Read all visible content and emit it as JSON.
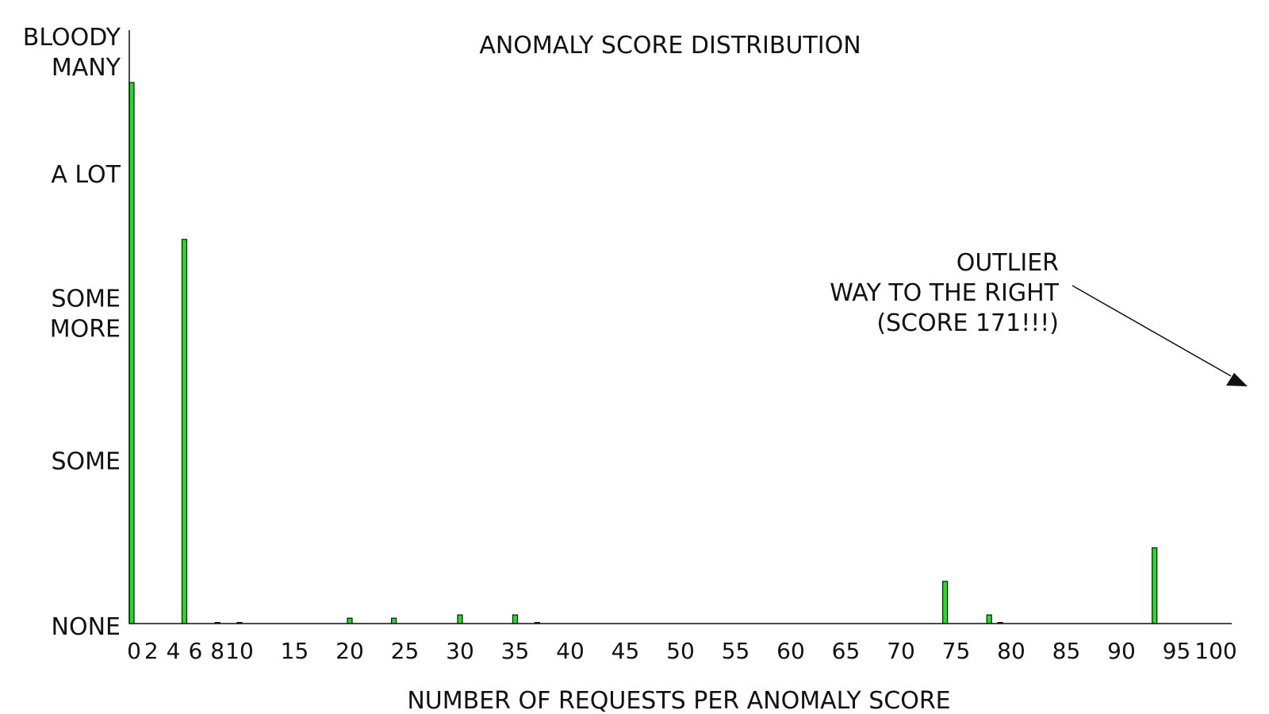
{
  "chart_data": {
    "type": "bar",
    "title": "ANOMALY SCORE DISTRIBUTION",
    "xlabel": "NUMBER OF REQUESTS PER ANOMALY SCORE",
    "ylabel": "",
    "xlim": [
      0,
      100
    ],
    "ylim": [
      0,
      100
    ],
    "grid": false,
    "y_tick_labels": [
      {
        "value": 0,
        "lines": [
          "NONE"
        ]
      },
      {
        "value": 30,
        "lines": [
          "SOME"
        ]
      },
      {
        "value": 57,
        "lines": [
          "SOME",
          "MORE"
        ]
      },
      {
        "value": 83,
        "lines": [
          "A LOT"
        ]
      },
      {
        "value": 100,
        "lines": [
          "BLOODY",
          "MANY"
        ]
      }
    ],
    "x_ticks": [
      0,
      2,
      4,
      6,
      8,
      10,
      15,
      20,
      25,
      30,
      35,
      40,
      45,
      50,
      55,
      60,
      65,
      70,
      75,
      80,
      85,
      90,
      95,
      100
    ],
    "bars": [
      {
        "x": 0,
        "y": 100
      },
      {
        "x": 5,
        "y": 71
      },
      {
        "x": 8,
        "y": 0.2
      },
      {
        "x": 10,
        "y": 0.2
      },
      {
        "x": 20,
        "y": 1
      },
      {
        "x": 24,
        "y": 1
      },
      {
        "x": 30,
        "y": 1.6
      },
      {
        "x": 35,
        "y": 1.6
      },
      {
        "x": 37,
        "y": 0.2
      },
      {
        "x": 74,
        "y": 7.8
      },
      {
        "x": 78,
        "y": 1.6
      },
      {
        "x": 79,
        "y": 0.2
      },
      {
        "x": 93,
        "y": 14
      }
    ],
    "annotation": {
      "lines": [
        "OUTLIER",
        "WAY TO THE RIGHT",
        "(SCORE 171!!!)"
      ]
    }
  }
}
